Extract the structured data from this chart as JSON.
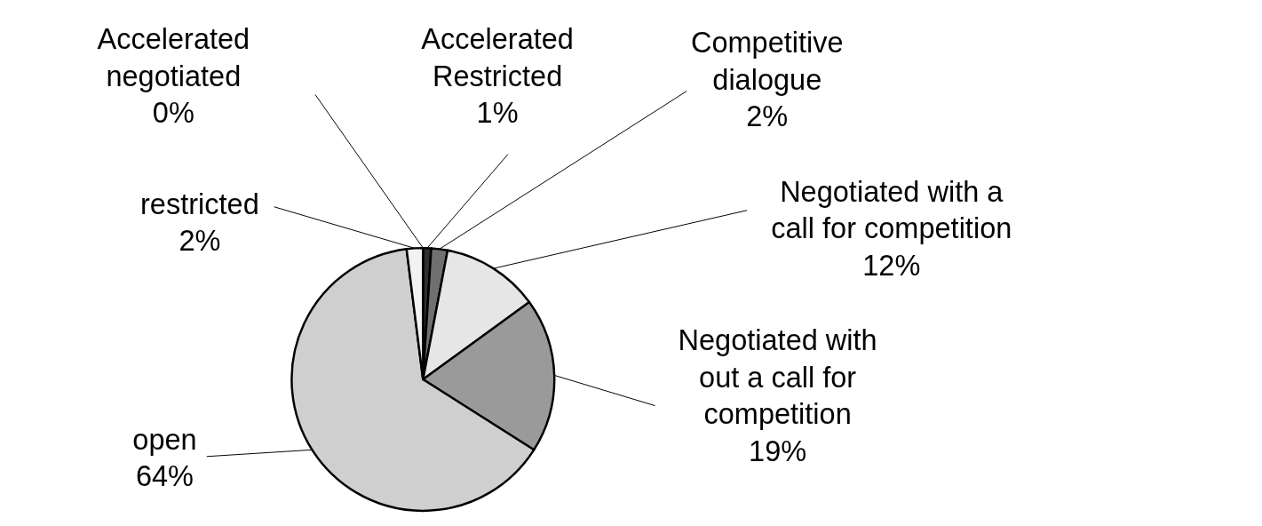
{
  "chart_data": {
    "type": "pie",
    "categories": [
      "Accelerated negotiated",
      "Accelerated Restricted",
      "Competitive dialogue",
      "Negotiated with a call for competition",
      "Negotiated with out a call for competition",
      "open",
      "restricted"
    ],
    "values": [
      0,
      1,
      2,
      12,
      19,
      64,
      2
    ],
    "value_labels": [
      "0%",
      "1%",
      "2%",
      "12%",
      "19%",
      "64%",
      "2%"
    ],
    "colors": [
      "#ffffff",
      "#303030",
      "#707070",
      "#e6e6e6",
      "#9a9a9a",
      "#cfcfcf",
      "#f2f2f2"
    ]
  }
}
